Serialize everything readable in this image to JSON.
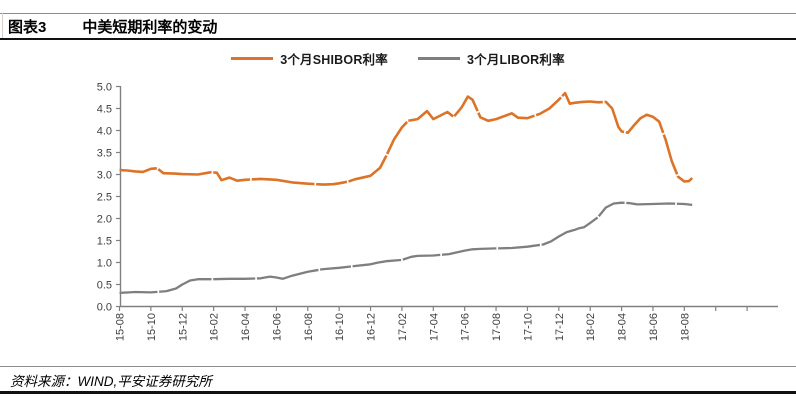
{
  "header": {
    "tag": "图表3",
    "title": "中美短期利率的变动"
  },
  "legend": {
    "items": [
      {
        "label": "3个月SHIBOR利率",
        "color": "#DC7327"
      },
      {
        "label": "3个月LIBOR利率",
        "color": "#7F7F7F"
      }
    ]
  },
  "footer": {
    "source": "资料来源：WIND,平安证券研究所"
  },
  "chart_data": {
    "type": "line",
    "title": "中美短期利率的变动",
    "xlabel": "",
    "ylabel": "",
    "ylim": [
      0.0,
      5.0
    ],
    "grid": false,
    "legend_position": "top-center",
    "x_unit": "months since 2015-08, one tick label every 2 months",
    "y_ticks": [
      "0.0",
      "0.5",
      "1.0",
      "1.5",
      "2.0",
      "2.5",
      "3.0",
      "3.5",
      "4.0",
      "4.5",
      "5.0"
    ],
    "x_tick_labels": [
      "15-08",
      "15-10",
      "15-12",
      "16-02",
      "16-04",
      "16-06",
      "16-08",
      "16-10",
      "16-12",
      "17-02",
      "17-04",
      "17-06",
      "17-08",
      "17-10",
      "17-12",
      "18-02",
      "18-04",
      "18-06",
      "18-08"
    ],
    "series": [
      {
        "name": "3个月SHIBOR利率",
        "color": "#DC7327",
        "points": [
          [
            0,
            3.1
          ],
          [
            0.5,
            3.09
          ],
          [
            1,
            3.07
          ],
          [
            1.5,
            3.06
          ],
          [
            2,
            3.13
          ],
          [
            2.4,
            3.14
          ],
          [
            2.8,
            3.03
          ],
          [
            3.5,
            3.02
          ],
          [
            4,
            3.01
          ],
          [
            5,
            3.0
          ],
          [
            5.8,
            3.05
          ],
          [
            6.2,
            3.04
          ],
          [
            6.5,
            2.87
          ],
          [
            7,
            2.93
          ],
          [
            7.5,
            2.86
          ],
          [
            8,
            2.88
          ],
          [
            9,
            2.9
          ],
          [
            10,
            2.88
          ],
          [
            11,
            2.82
          ],
          [
            12,
            2.79
          ],
          [
            13,
            2.77
          ],
          [
            13.6,
            2.78
          ],
          [
            14,
            2.8
          ],
          [
            14.6,
            2.84
          ],
          [
            15,
            2.89
          ],
          [
            16,
            2.97
          ],
          [
            16.6,
            3.15
          ],
          [
            17,
            3.42
          ],
          [
            17.5,
            3.8
          ],
          [
            18,
            4.07
          ],
          [
            18.4,
            4.22
          ],
          [
            19,
            4.26
          ],
          [
            19.6,
            4.44
          ],
          [
            20,
            4.26
          ],
          [
            20.9,
            4.42
          ],
          [
            21.3,
            4.31
          ],
          [
            21.8,
            4.52
          ],
          [
            22.2,
            4.77
          ],
          [
            22.5,
            4.7
          ],
          [
            23,
            4.3
          ],
          [
            23.5,
            4.22
          ],
          [
            24,
            4.26
          ],
          [
            25,
            4.39
          ],
          [
            25.4,
            4.29
          ],
          [
            26,
            4.28
          ],
          [
            26.8,
            4.38
          ],
          [
            27.4,
            4.5
          ],
          [
            28,
            4.7
          ],
          [
            28.4,
            4.85
          ],
          [
            28.7,
            4.61
          ],
          [
            29,
            4.63
          ],
          [
            29.5,
            4.65
          ],
          [
            30,
            4.66
          ],
          [
            30.5,
            4.64
          ],
          [
            31,
            4.65
          ],
          [
            31.4,
            4.5
          ],
          [
            31.8,
            4.08
          ],
          [
            32,
            3.98
          ],
          [
            32.4,
            3.95
          ],
          [
            32.8,
            4.12
          ],
          [
            33.2,
            4.28
          ],
          [
            33.6,
            4.36
          ],
          [
            34,
            4.31
          ],
          [
            34.4,
            4.2
          ],
          [
            34.8,
            3.8
          ],
          [
            35.2,
            3.3
          ],
          [
            35.6,
            2.95
          ],
          [
            36,
            2.84
          ],
          [
            36.3,
            2.85
          ],
          [
            36.5,
            2.92
          ]
        ]
      },
      {
        "name": "3个月LIBOR利率",
        "color": "#7F7F7F",
        "points": [
          [
            0,
            0.31
          ],
          [
            1,
            0.33
          ],
          [
            2,
            0.32
          ],
          [
            3,
            0.35
          ],
          [
            3.6,
            0.41
          ],
          [
            4,
            0.5
          ],
          [
            4.5,
            0.59
          ],
          [
            5,
            0.62
          ],
          [
            6,
            0.62
          ],
          [
            7,
            0.63
          ],
          [
            8,
            0.63
          ],
          [
            9,
            0.64
          ],
          [
            9.6,
            0.68
          ],
          [
            10,
            0.66
          ],
          [
            10.4,
            0.63
          ],
          [
            11,
            0.7
          ],
          [
            12,
            0.79
          ],
          [
            13,
            0.85
          ],
          [
            14,
            0.88
          ],
          [
            15,
            0.92
          ],
          [
            16,
            0.96
          ],
          [
            16.5,
            1.0
          ],
          [
            17,
            1.03
          ],
          [
            18,
            1.06
          ],
          [
            18.6,
            1.13
          ],
          [
            19,
            1.15
          ],
          [
            20,
            1.16
          ],
          [
            21,
            1.19
          ],
          [
            21.5,
            1.23
          ],
          [
            22,
            1.27
          ],
          [
            22.5,
            1.3
          ],
          [
            23,
            1.31
          ],
          [
            24,
            1.32
          ],
          [
            25,
            1.33
          ],
          [
            26,
            1.36
          ],
          [
            27,
            1.41
          ],
          [
            27.5,
            1.48
          ],
          [
            28,
            1.59
          ],
          [
            28.5,
            1.69
          ],
          [
            29,
            1.74
          ],
          [
            29.3,
            1.78
          ],
          [
            29.6,
            1.8
          ],
          [
            30,
            1.9
          ],
          [
            30.5,
            2.03
          ],
          [
            31,
            2.25
          ],
          [
            31.5,
            2.34
          ],
          [
            32,
            2.36
          ],
          [
            32.5,
            2.35
          ],
          [
            33,
            2.32
          ],
          [
            34,
            2.33
          ],
          [
            35,
            2.34
          ],
          [
            36,
            2.33
          ],
          [
            36.5,
            2.31
          ]
        ]
      }
    ]
  }
}
